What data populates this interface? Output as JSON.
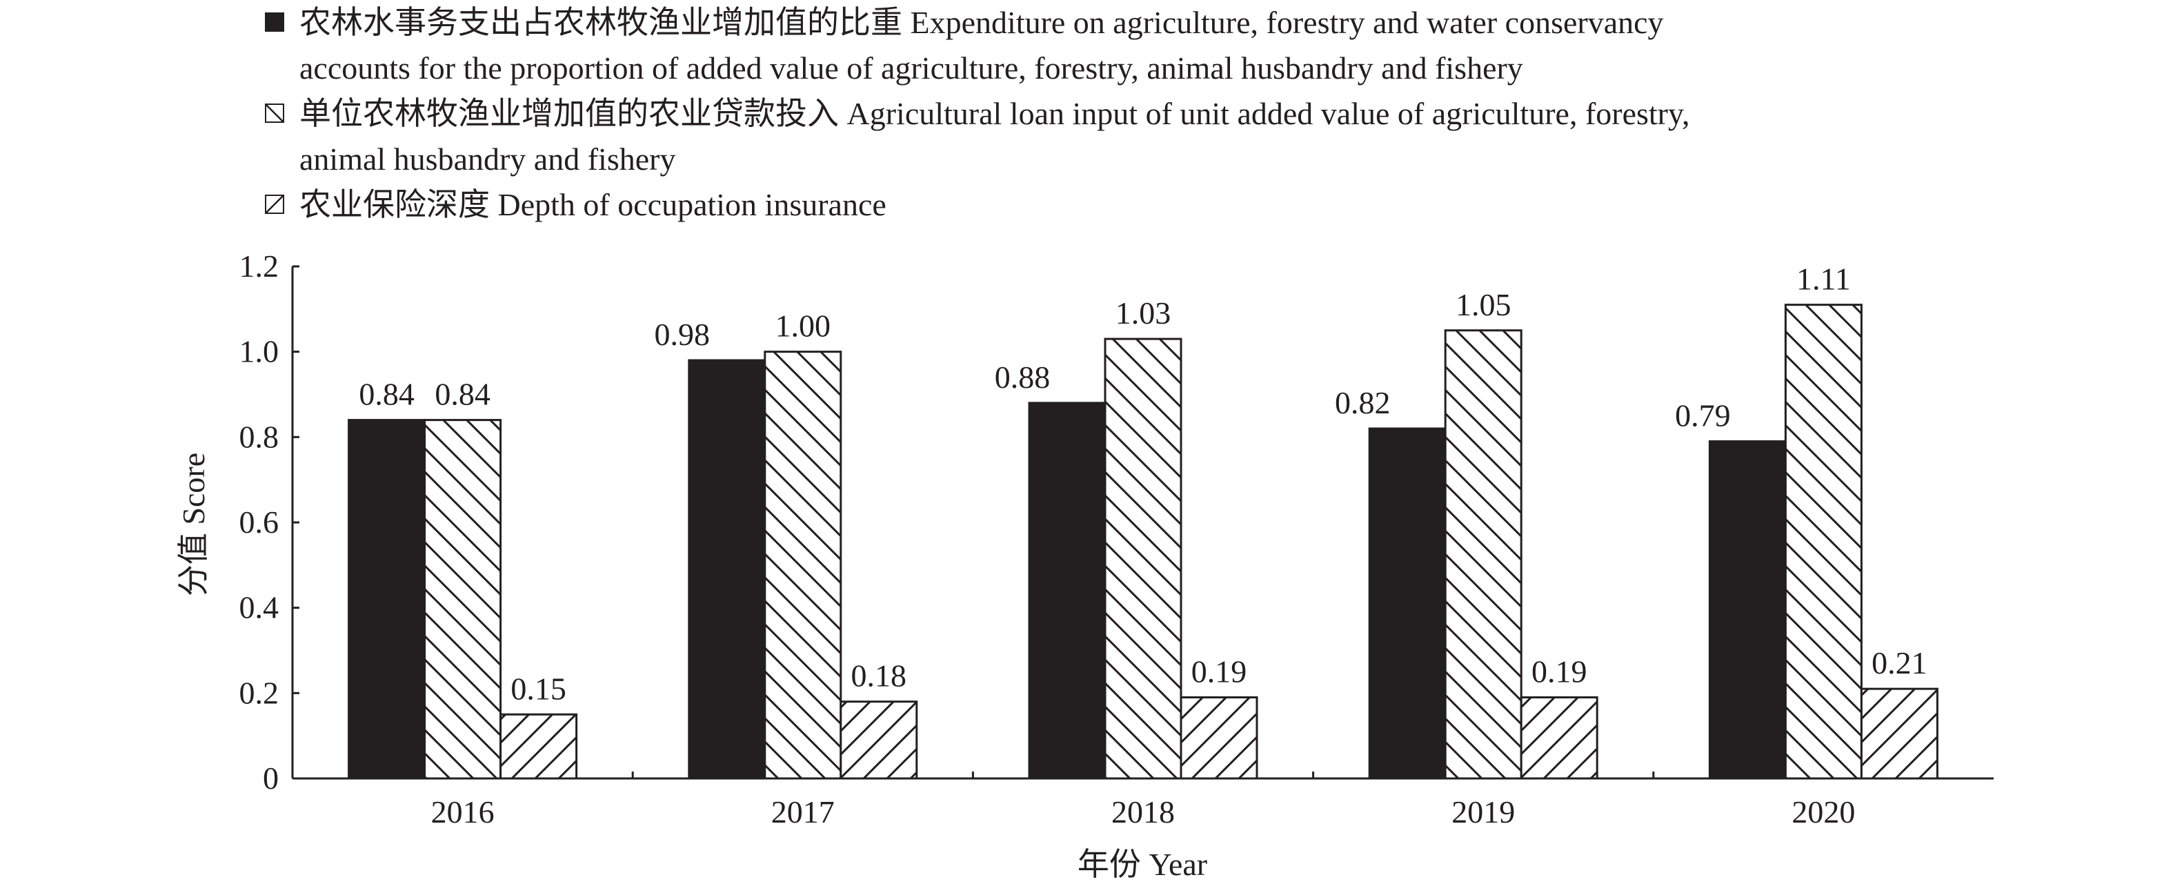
{
  "chart_data": {
    "type": "bar",
    "categories": [
      "2016",
      "2017",
      "2018",
      "2019",
      "2020"
    ],
    "series": [
      {
        "name": "农林水事务支出占农林牧渔业增加值的比重 Expenditure on agriculture, forestry and water conservancy accounts for the proportion of added value of agriculture, forestry, animal husbandry and fishery",
        "pattern": "solid",
        "values": [
          0.84,
          0.98,
          0.88,
          0.82,
          0.79
        ],
        "labels": [
          "0.84",
          "0.98",
          "0.88",
          "0.82",
          "0.79"
        ]
      },
      {
        "name": "单位农林牧渔业增加值的农业贷款投入 Agricultural loan input of unit added value of agriculture, forestry, animal husbandry and fishery",
        "pattern": "backslash-hatch",
        "values": [
          0.84,
          1.0,
          1.03,
          1.05,
          1.11
        ],
        "labels": [
          "0.84",
          "1.00",
          "1.03",
          "1.05",
          "1.11"
        ]
      },
      {
        "name": "农业保险深度 Depth of occupation insurance",
        "pattern": "slash-hatch",
        "values": [
          0.15,
          0.18,
          0.19,
          0.19,
          0.21
        ],
        "labels": [
          "0.15",
          "0.18",
          "0.19",
          "0.19",
          "0.21"
        ]
      }
    ],
    "legend_lines": [
      [
        "农林水事务支出占农林牧渔业增加值的比重 Expenditure on agriculture, forestry and water conservancy",
        "accounts for the proportion of added value of agriculture, forestry, animal husbandry and fishery"
      ],
      [
        "单位农林牧渔业增加值的农业贷款投入 Agricultural loan input of unit added value of agriculture, forestry,",
        "animal husbandry and fishery"
      ],
      [
        "农业保险深度 Depth of occupation insurance"
      ]
    ],
    "xlabel": "年份 Year",
    "ylabel": "分值 Score",
    "ylim": [
      0,
      1.2
    ],
    "yticks": [
      "0",
      "0.2",
      "0.4",
      "0.6",
      "0.8",
      "1.0",
      "1.2"
    ],
    "grid": false,
    "legend_position": "top"
  },
  "colors": {
    "ink": "#231f20",
    "background": "#ffffff"
  }
}
